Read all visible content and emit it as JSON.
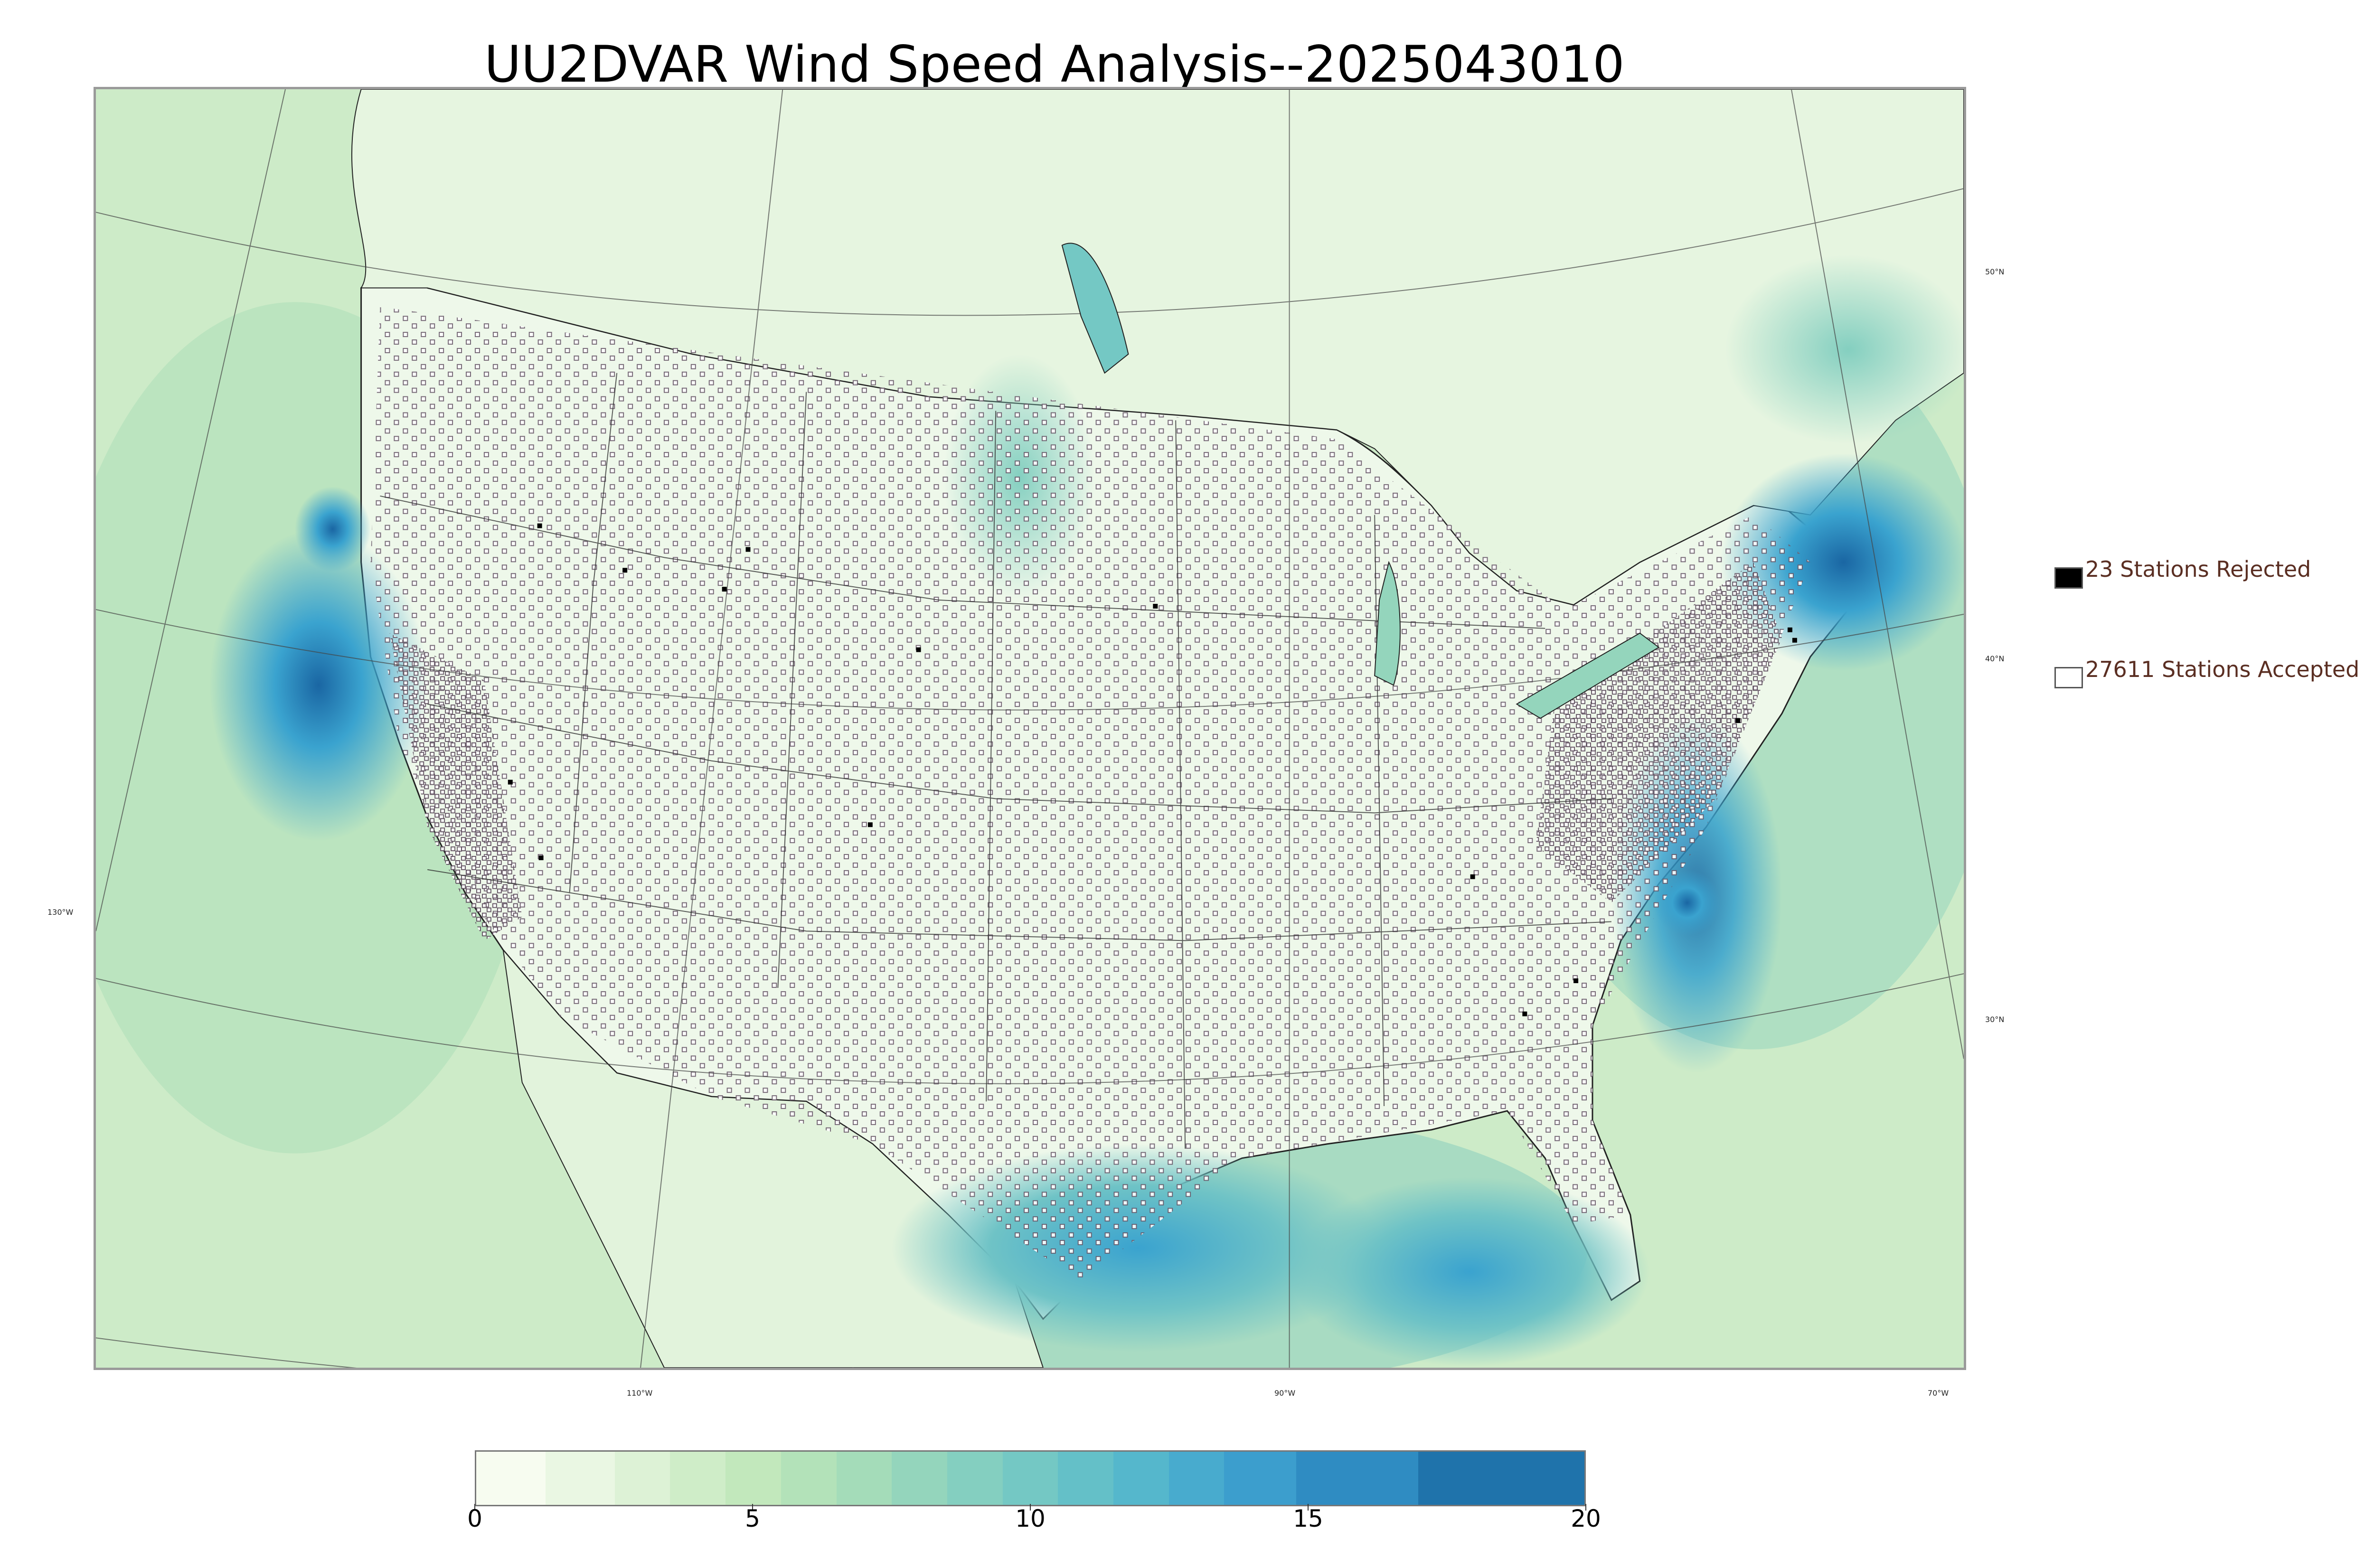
{
  "title": "UU2DVAR Wind Speed Analysis--2025043010",
  "map": {
    "type": "wind-speed-analysis-map",
    "colors": {
      "land_light": "#eef8ea",
      "land_mid": "#cdebc8",
      "sea_mid": "#6fc3c6",
      "sea_strong": "#3aa3cf",
      "sea_max": "#1a66a3",
      "boundary": "#333333",
      "station_outline": "#6a5a6a"
    },
    "graticule_labels": {
      "lat": [
        "50°N",
        "40°N",
        "30°N"
      ],
      "lon": [
        "130°W",
        "110°W",
        "90°W",
        "70°W"
      ]
    }
  },
  "legend": {
    "rejected": {
      "text": "23 Stations Rejected",
      "count": 23,
      "color": "#000000"
    },
    "accepted": {
      "text": "27611 Stations Accepted",
      "count": 27611,
      "color": "#ffffff"
    }
  },
  "colorbar": {
    "min": 0,
    "max": 20,
    "ticks": [
      "0",
      "5",
      "10",
      "15",
      "20"
    ],
    "colors": [
      "#f7fcf0",
      "#eaf7e3",
      "#ddf2d6",
      "#cfedc8",
      "#c2e8bc",
      "#b3e2b9",
      "#a4dcb9",
      "#94d5bc",
      "#84cfc0",
      "#74c8c4",
      "#64c0c8",
      "#55b7cc",
      "#48abce",
      "#3c9ecd",
      "#2f8cc2",
      "#1f73ab",
      "#16629a"
    ],
    "bounds": [
      0,
      1.25,
      2.5,
      3.5,
      4.5,
      5.5,
      6.5,
      7.5,
      8.5,
      9.5,
      10.5,
      11.5,
      12.5,
      13.5,
      14.8,
      17,
      20
    ]
  }
}
